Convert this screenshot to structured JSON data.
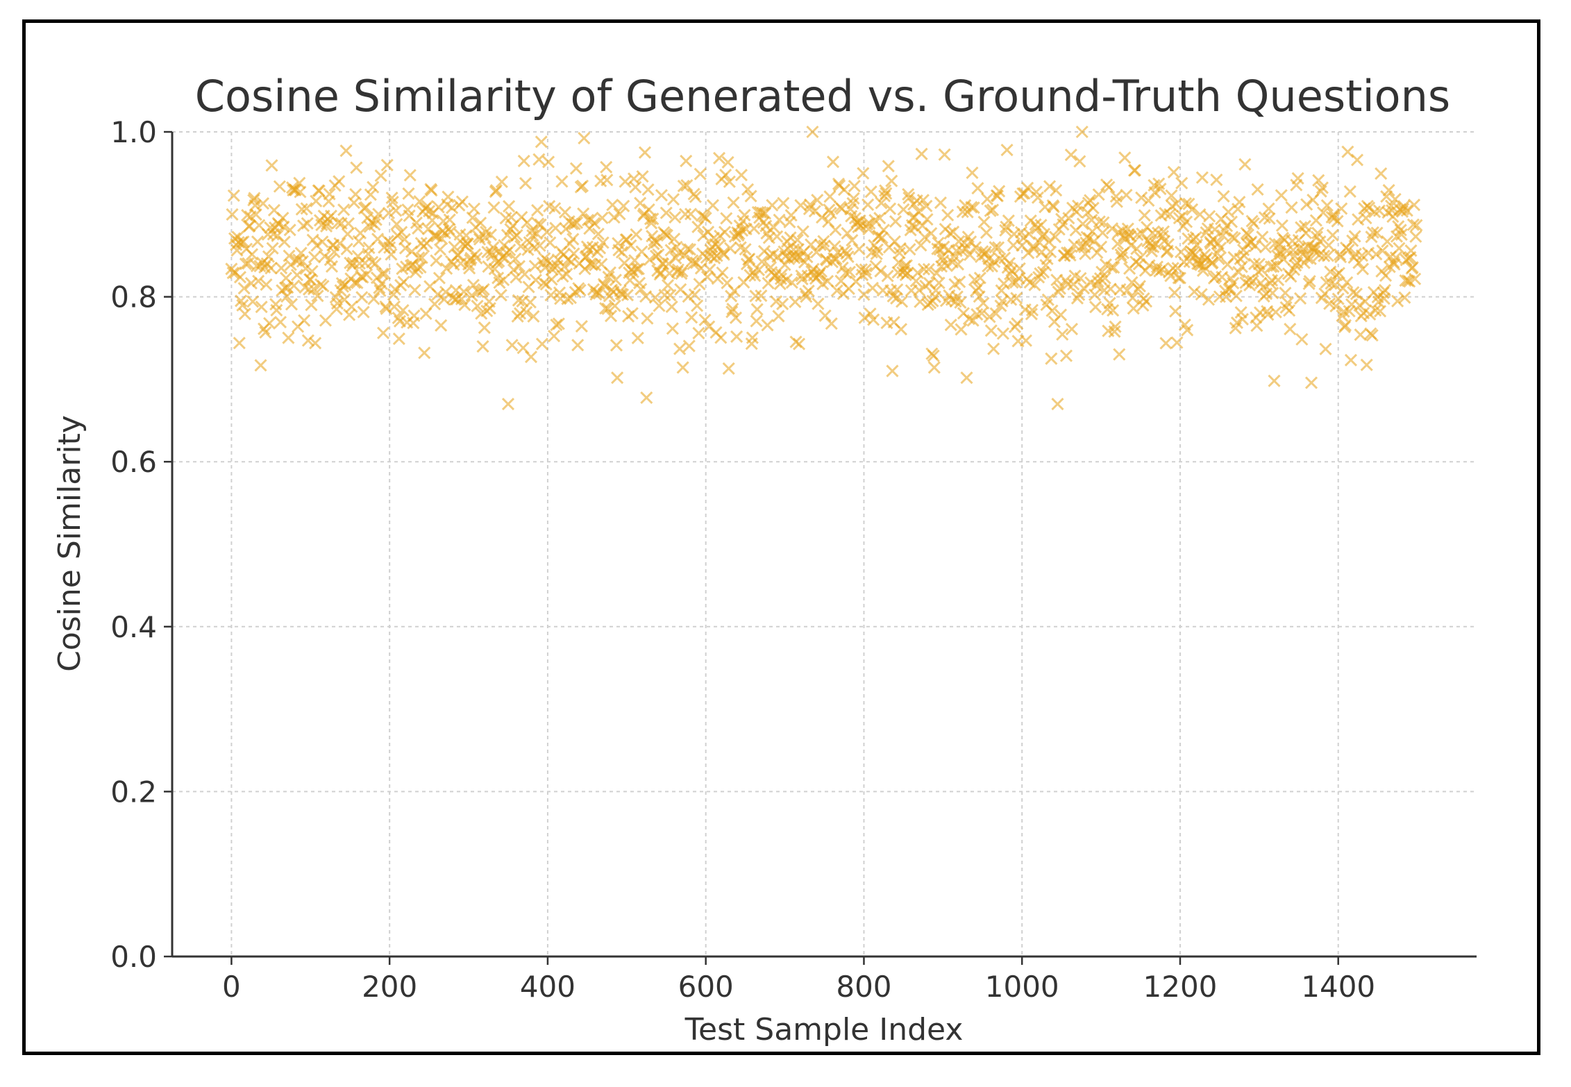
{
  "chart_data": {
    "type": "scatter",
    "title": "Cosine Similarity of Generated vs. Ground-Truth Questions",
    "xlabel": "Test Sample Index",
    "ylabel": "Cosine Similarity",
    "xlim": [
      -75,
      1575
    ],
    "ylim": [
      0.0,
      1.0
    ],
    "xticks": [
      0,
      200,
      400,
      600,
      800,
      1000,
      1200,
      1400
    ],
    "xtick_labels": [
      "0",
      "200",
      "400",
      "600",
      "800",
      "1000",
      "1200",
      "1400"
    ],
    "yticks": [
      0.0,
      0.2,
      0.4,
      0.6,
      0.8,
      1.0
    ],
    "ytick_labels": [
      "0.0",
      "0.2",
      "0.4",
      "0.6",
      "0.8",
      "1.0"
    ],
    "grid": true,
    "marker": "x",
    "color": "#e8a317",
    "series": [
      {
        "n_points": 1500,
        "x_start": 0,
        "x_end": 1499,
        "mean_similarity": 0.85,
        "typical_range": [
          0.76,
          0.95
        ],
        "min_similarity": 0.67,
        "max_similarity": 1.0
      }
    ]
  }
}
